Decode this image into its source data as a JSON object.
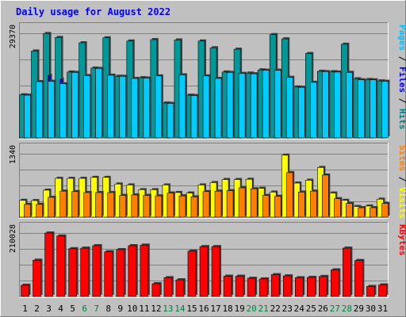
{
  "chart_data": {
    "type": "bar",
    "title": "Daily usage for August 2022",
    "categories": [
      "1",
      "2",
      "3",
      "4",
      "5",
      "6",
      "7",
      "8",
      "9",
      "10",
      "11",
      "12",
      "13",
      "14",
      "15",
      "16",
      "17",
      "18",
      "19",
      "20",
      "21",
      "22",
      "23",
      "24",
      "25",
      "26",
      "27",
      "28",
      "29",
      "30",
      "31"
    ],
    "weekend_days": [
      "6",
      "7",
      "13",
      "14",
      "20",
      "21",
      "27",
      "28"
    ],
    "grid": true,
    "panels": [
      {
        "id": "hits",
        "max_label": "29370",
        "ylim": [
          0,
          29370
        ],
        "axis_title": [
          {
            "text": "Pages",
            "color": "#00c0ff"
          },
          {
            "text": " / ",
            "color": "#000000"
          },
          {
            "text": "Files",
            "color": "#0000ff"
          },
          {
            "text": " / ",
            "color": "#000000"
          },
          {
            "text": "Hits",
            "color": "#008080"
          }
        ],
        "series": [
          {
            "name": "Hits",
            "color": "#009999",
            "values": [
              12100,
              24400,
              29300,
              28200,
              18500,
              26700,
              19600,
              28100,
              17300,
              27200,
              16900,
              27600,
              9800,
              27500,
              12000,
              27200,
              25300,
              18500,
              24900,
              18200,
              19100,
              29000,
              27800,
              14300,
              23700,
              18700,
              18600,
              26300,
              16600,
              16400,
              16000
            ]
          },
          {
            "name": "Files",
            "color": "#0000ff",
            "values": [
              9000,
              14500,
              17600,
              16500,
              14000,
              13800,
              15000,
              14500,
              12100,
              13600,
              12200,
              13700,
              8000,
              13300,
              10100,
              13500,
              13200,
              11200,
              14100,
              11200,
              11600,
              12600,
              13200,
              10800,
              11800,
              11000,
              11900,
              11600,
              11100,
              11400,
              11000
            ]
          },
          {
            "name": "Pages",
            "color": "#00ccff",
            "values": [
              12000,
              15800,
              15900,
              15200,
              18400,
              17500,
              19500,
              17600,
              17300,
              16700,
              16800,
              17400,
              9700,
              17700,
              11900,
              17400,
              16700,
              18400,
              18100,
              18000,
              19000,
              19000,
              17000,
              14200,
              15600,
              18600,
              18500,
              18400,
              16300,
              16300,
              15900
            ]
          }
        ]
      },
      {
        "id": "visits",
        "max_label": "1340",
        "ylim": [
          0,
          1340
        ],
        "axis_title": [
          {
            "text": "Sites",
            "color": "#ff8000"
          },
          {
            "text": " / ",
            "color": "#000000"
          },
          {
            "text": "Visits",
            "color": "#ffff00"
          }
        ],
        "series": [
          {
            "name": "Visits",
            "color": "#ffff00",
            "values": [
              355,
              350,
              570,
              820,
              820,
              820,
              840,
              840,
              700,
              680,
              580,
              580,
              680,
              520,
              510,
              680,
              730,
              795,
              795,
              800,
              610,
              530,
              1310,
              720,
              780,
              1050,
              510,
              355,
              225,
              235,
              380
            ]
          },
          {
            "name": "Sites",
            "color": "#ff8000",
            "values": [
              270,
              270,
              420,
              550,
              540,
              520,
              520,
              520,
              460,
              470,
              460,
              450,
              510,
              450,
              430,
              540,
              550,
              560,
              620,
              600,
              460,
              440,
              940,
              530,
              550,
              890,
              390,
              290,
              200,
              200,
              290
            ]
          }
        ]
      },
      {
        "id": "kbytes",
        "max_label": "210028",
        "ylim": [
          0,
          210028
        ],
        "axis_title": [
          {
            "text": "KBytes",
            "color": "#ff0000"
          }
        ],
        "series": [
          {
            "name": "KBytes",
            "color": "#ff0000",
            "values": [
              37000,
              120000,
              210000,
              200000,
              158000,
              160000,
              168000,
              148000,
              155000,
              168000,
              170000,
              42000,
              62000,
              55000,
              150000,
              165000,
              165000,
              67000,
              67000,
              60000,
              58000,
              72000,
              68000,
              62000,
              63000,
              66000,
              88000,
              160000,
              119000,
              33000,
              38000
            ]
          }
        ]
      }
    ]
  }
}
